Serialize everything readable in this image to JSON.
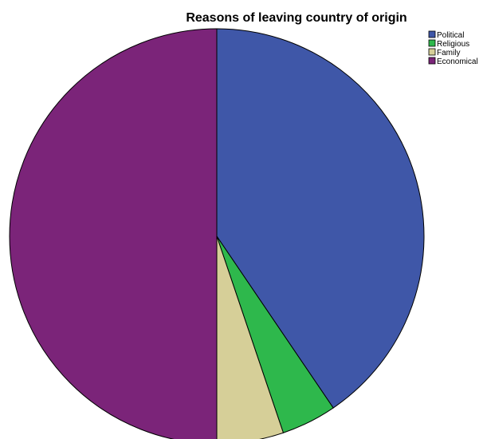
{
  "chart_data": {
    "type": "pie",
    "title": "Reasons of leaving country of origin",
    "categories": [
      "Political",
      "Religious",
      "Family",
      "Economical"
    ],
    "values": [
      40.5,
      4.3,
      5.2,
      50.0
    ],
    "colors": [
      "#3f57a8",
      "#2eb84c",
      "#d6cf98",
      "#7b2479"
    ],
    "legend_position": "top-right"
  }
}
